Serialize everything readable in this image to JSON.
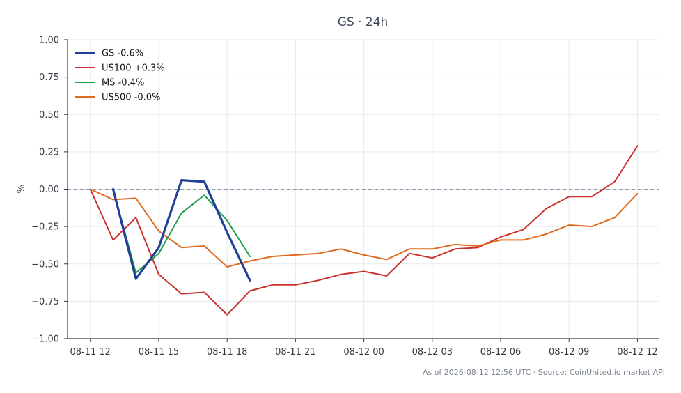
{
  "chart_data": {
    "type": "line",
    "title": "GS · 24h",
    "xlabel": "",
    "ylabel": "%",
    "ylim": [
      -1.0,
      1.0
    ],
    "yticks": [
      "1.00",
      "0.75",
      "0.50",
      "0.25",
      "0.00",
      "−0.25",
      "−0.50",
      "−0.75",
      "−1.00"
    ],
    "ytick_values": [
      1.0,
      0.75,
      0.5,
      0.25,
      0.0,
      -0.25,
      -0.5,
      -0.75,
      -1.0
    ],
    "xlim": [
      "2026-08-11 11:00",
      "2026-08-12 12:56"
    ],
    "xticks": [
      "08-11 12",
      "08-11 15",
      "08-11 18",
      "08-11 21",
      "08-12 00",
      "08-12 03",
      "08-12 06",
      "08-12 09",
      "08-12 12"
    ],
    "xtick_values": [
      "2026-08-11 12:00",
      "2026-08-11 15:00",
      "2026-08-11 18:00",
      "2026-08-11 21:00",
      "2026-08-12 00:00",
      "2026-08-12 03:00",
      "2026-08-12 06:00",
      "2026-08-12 09:00",
      "2026-08-12 12:00"
    ],
    "grid": true,
    "reference_line": 0.0,
    "legend_position": "top-left",
    "footer": "As of 2026-08-12 12:56 UTC · Source: CoinUnited.io market API",
    "series": [
      {
        "name": "GS -0.6%",
        "color": "#1f3f99",
        "x": [
          "2026-08-11 13:00",
          "2026-08-11 14:00",
          "2026-08-11 15:00",
          "2026-08-11 16:00",
          "2026-08-11 17:00",
          "2026-08-11 18:00",
          "2026-08-11 19:00"
        ],
        "y": [
          0.0,
          -0.6,
          -0.39,
          0.06,
          0.05,
          -0.29,
          -0.61
        ]
      },
      {
        "name": "US100 +0.3%",
        "color": "#c9302c",
        "x": [
          "2026-08-11 12:00",
          "2026-08-11 13:00",
          "2026-08-11 14:00",
          "2026-08-11 15:00",
          "2026-08-11 16:00",
          "2026-08-11 17:00",
          "2026-08-11 18:00",
          "2026-08-11 19:00",
          "2026-08-11 20:00",
          "2026-08-11 21:00",
          "2026-08-11 22:00",
          "2026-08-11 23:00",
          "2026-08-12 00:00",
          "2026-08-12 01:00",
          "2026-08-12 02:00",
          "2026-08-12 03:00",
          "2026-08-12 04:00",
          "2026-08-12 05:00",
          "2026-08-12 06:00",
          "2026-08-12 07:00",
          "2026-08-12 08:00",
          "2026-08-12 09:00",
          "2026-08-12 10:00",
          "2026-08-12 11:00",
          "2026-08-12 12:00"
        ],
        "y": [
          0.0,
          -0.34,
          -0.19,
          -0.57,
          -0.7,
          -0.69,
          -0.84,
          -0.68,
          -0.64,
          -0.64,
          -0.61,
          -0.57,
          -0.55,
          -0.58,
          -0.43,
          -0.46,
          -0.4,
          -0.39,
          -0.32,
          -0.27,
          -0.13,
          -0.05,
          -0.05,
          0.05,
          0.29
        ]
      },
      {
        "name": "MS -0.4%",
        "color": "#1e9e4a",
        "x": [
          "2026-08-11 13:00",
          "2026-08-11 14:00",
          "2026-08-11 15:00",
          "2026-08-11 16:00",
          "2026-08-11 17:00",
          "2026-08-11 18:00",
          "2026-08-11 19:00"
        ],
        "y": [
          0.0,
          -0.56,
          -0.43,
          -0.16,
          -0.04,
          -0.21,
          -0.45
        ]
      },
      {
        "name": "US500 -0.0%",
        "color": "#e06a1f",
        "x": [
          "2026-08-11 12:00",
          "2026-08-11 13:00",
          "2026-08-11 14:00",
          "2026-08-11 15:00",
          "2026-08-11 16:00",
          "2026-08-11 17:00",
          "2026-08-11 18:00",
          "2026-08-11 19:00",
          "2026-08-11 20:00",
          "2026-08-11 21:00",
          "2026-08-11 22:00",
          "2026-08-11 23:00",
          "2026-08-12 00:00",
          "2026-08-12 01:00",
          "2026-08-12 02:00",
          "2026-08-12 03:00",
          "2026-08-12 04:00",
          "2026-08-12 05:00",
          "2026-08-12 06:00",
          "2026-08-12 07:00",
          "2026-08-12 08:00",
          "2026-08-12 09:00",
          "2026-08-12 10:00",
          "2026-08-12 11:00",
          "2026-08-12 12:00"
        ],
        "y": [
          0.0,
          -0.07,
          -0.06,
          -0.28,
          -0.39,
          -0.38,
          -0.52,
          -0.48,
          -0.45,
          -0.44,
          -0.43,
          -0.4,
          -0.44,
          -0.47,
          -0.4,
          -0.4,
          -0.37,
          -0.38,
          -0.34,
          -0.34,
          -0.3,
          -0.24,
          -0.25,
          -0.19,
          -0.03
        ]
      }
    ]
  }
}
